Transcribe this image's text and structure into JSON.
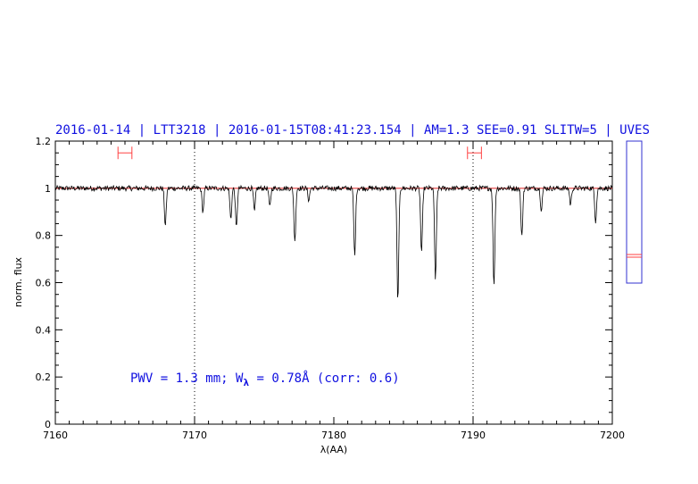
{
  "chart_data": {
    "type": "line",
    "title": "2016-01-14 | LTT3218 | 2016-01-15T08:41:23.154 | AM=1.3 SEE=0.91 SLITW=5 | UVES",
    "xlabel": "λ(AA)",
    "ylabel": "norm. flux",
    "xlim": [
      7160,
      7200
    ],
    "ylim": [
      0,
      1.2
    ],
    "x_ticks": [
      "7160",
      "7170",
      "7180",
      "7190",
      "7200"
    ],
    "y_ticks": [
      "0",
      "0.2",
      "0.4",
      "0.6",
      "0.8",
      "1",
      "1.2"
    ],
    "vertical_markers": [
      7170,
      7190
    ],
    "reference_line": 1.0,
    "annotation": {
      "prefix": "PWV = 1.3 mm; W",
      "subscript": "λ",
      "suffix": " = 0.78Å (corr: 0.6)"
    },
    "continuum_windows": [
      {
        "x_start": 7164.5,
        "x_end": 7165.5,
        "y": 1.15
      },
      {
        "x_start": 7189.6,
        "x_end": 7190.6,
        "y": 1.15
      }
    ],
    "absorption_lines": [
      {
        "x": 7167.9,
        "depth": 0.84
      },
      {
        "x": 7170.6,
        "depth": 0.9
      },
      {
        "x": 7172.6,
        "depth": 0.87
      },
      {
        "x": 7173.0,
        "depth": 0.83
      },
      {
        "x": 7174.3,
        "depth": 0.9
      },
      {
        "x": 7175.4,
        "depth": 0.92
      },
      {
        "x": 7177.2,
        "depth": 0.77
      },
      {
        "x": 7178.2,
        "depth": 0.95
      },
      {
        "x": 7181.5,
        "depth": 0.71
      },
      {
        "x": 7184.6,
        "depth": 0.52
      },
      {
        "x": 7186.3,
        "depth": 0.72
      },
      {
        "x": 7187.3,
        "depth": 0.61
      },
      {
        "x": 7191.5,
        "depth": 0.58
      },
      {
        "x": 7193.5,
        "depth": 0.79
      },
      {
        "x": 7194.9,
        "depth": 0.91
      },
      {
        "x": 7197.0,
        "depth": 0.93
      },
      {
        "x": 7198.8,
        "depth": 0.86
      }
    ],
    "grid": false,
    "colors": {
      "spectrum": "#000000",
      "reference": "#e02020",
      "text": "#1010e0",
      "window": "#ff4040",
      "side_panel": "#3030d0"
    }
  }
}
